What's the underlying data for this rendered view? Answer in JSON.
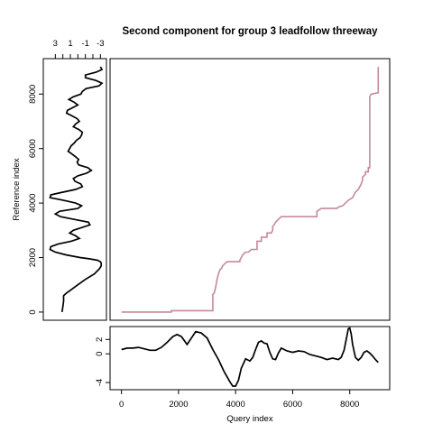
{
  "chart_data": {
    "type": "line",
    "title": "Second component for group 3 leadfollow threeway",
    "series_color": "#c48a98",
    "panels": [
      {
        "name": "alignment",
        "type": "line",
        "xlabel": "Query index",
        "ylabel": "Reference index",
        "xlim": [
          -400,
          9400
        ],
        "ylim": [
          -300,
          9300
        ],
        "x_ticks": [
          0,
          2000,
          4000,
          6000,
          8000
        ],
        "y_ticks": [
          0,
          2000,
          4000,
          6000,
          8000
        ],
        "x": [
          0,
          1750,
          1750,
          3200,
          3200,
          3250,
          3300,
          3350,
          3400,
          3450,
          3500,
          3550,
          3650,
          3700,
          3750,
          4150,
          4150,
          4200,
          4250,
          4300,
          4350,
          4450,
          4500,
          4550,
          4600,
          4750,
          4750,
          4900,
          4900,
          5100,
          5100,
          5250,
          5300,
          5300,
          5350,
          5400,
          5450,
          5500,
          5550,
          5600,
          6850,
          6850,
          7000,
          7350,
          7550,
          7600,
          7750,
          7850,
          7950,
          8100,
          8150,
          8200,
          8300,
          8400,
          8450,
          8450,
          8550,
          8550,
          8650,
          8650,
          8700,
          8700,
          8750,
          8750,
          9000,
          9000
        ],
        "y": [
          0,
          0,
          50,
          50,
          650,
          700,
          900,
          1200,
          1400,
          1550,
          1600,
          1700,
          1800,
          1850,
          1850,
          1850,
          1900,
          2000,
          2100,
          2150,
          2200,
          2200,
          2250,
          2300,
          2300,
          2300,
          2600,
          2600,
          2750,
          2750,
          2900,
          2900,
          3000,
          3150,
          3200,
          3300,
          3350,
          3400,
          3450,
          3500,
          3500,
          3700,
          3800,
          3800,
          3800,
          3850,
          3900,
          4000,
          4100,
          4200,
          4300,
          4400,
          4500,
          4700,
          4850,
          4950,
          5050,
          5150,
          5150,
          5300,
          5300,
          7900,
          8000,
          8000,
          8050,
          9000
        ]
      },
      {
        "name": "reference-component",
        "type": "line",
        "orientation": "vertical",
        "x_ticks": [
          3,
          1,
          -1,
          -3
        ],
        "xlim": [
          4.6,
          -3.8
        ],
        "ylim": [
          -300,
          9300
        ],
        "y": [
          0,
          200,
          400,
          600,
          700,
          800,
          1000,
          1200,
          1400,
          1600,
          1700,
          1800,
          1850,
          1900,
          1950,
          2000,
          2100,
          2200,
          2300,
          2400,
          2500,
          2600,
          2700,
          2800,
          2900,
          3000,
          3200,
          3300,
          3400,
          3500,
          3600,
          3700,
          3800,
          3900,
          4000,
          4100,
          4200,
          4300,
          4400,
          4500,
          4600,
          4700,
          4800,
          4900,
          5000,
          5100,
          5200,
          5300,
          5400,
          5500,
          5600,
          5700,
          5800,
          5900,
          6000,
          6100,
          6200,
          6300,
          6400,
          6500,
          6600,
          6700,
          6800,
          6900,
          7000,
          7100,
          7200,
          7300,
          7400,
          7500,
          7600,
          7700,
          7800,
          7900,
          8000,
          8100,
          8200,
          8300,
          8400,
          8500,
          8600,
          8700,
          8800,
          8900,
          9000
        ],
        "values": [
          2.1,
          2.0,
          1.9,
          1.9,
          1.5,
          1.0,
          0.0,
          -1.0,
          -2.2,
          -2.9,
          -3.1,
          -3.1,
          -3.0,
          -2.6,
          -1.6,
          -0.3,
          1.6,
          3.0,
          3.7,
          3.6,
          2.6,
          0.9,
          -0.2,
          0.3,
          1.1,
          0.6,
          -1.6,
          -1.4,
          0.5,
          2.3,
          3.0,
          2.4,
          0.0,
          -0.5,
          0.3,
          1.9,
          3.7,
          3.6,
          2.0,
          0.3,
          -0.6,
          -0.4,
          0.4,
          0.6,
          0.0,
          -1.2,
          -1.8,
          -1.3,
          -0.1,
          0.1,
          -0.1,
          0.3,
          0.8,
          1.3,
          1.1,
          0.9,
          0.5,
          0.2,
          -0.3,
          -0.5,
          -0.6,
          -0.1,
          0.6,
          0.3,
          -0.2,
          0.1,
          0.8,
          1.5,
          1.4,
          0.7,
          0.0,
          0.5,
          1.2,
          0.6,
          -0.4,
          -0.6,
          -1.1,
          -2.8,
          -3.2,
          -2.4,
          -1.0,
          -1.0,
          -2.4,
          -3.2,
          -3.0
        ]
      },
      {
        "name": "query-component",
        "type": "line",
        "xlim": [
          -400,
          9400
        ],
        "ylim": [
          -5.0,
          3.8
        ],
        "y_ticks": [
          2,
          0,
          -4
        ],
        "x": [
          0,
          200,
          400,
          600,
          800,
          1000,
          1200,
          1400,
          1600,
          1800,
          1950,
          2100,
          2300,
          2450,
          2600,
          2800,
          3000,
          3200,
          3400,
          3600,
          3800,
          3900,
          4000,
          4100,
          4200,
          4350,
          4500,
          4600,
          4700,
          4800,
          4900,
          5000,
          5100,
          5200,
          5300,
          5400,
          5500,
          5600,
          5800,
          6000,
          6200,
          6400,
          6600,
          6800,
          7000,
          7200,
          7400,
          7600,
          7700,
          7800,
          7900,
          7950,
          8000,
          8050,
          8100,
          8200,
          8300,
          8400,
          8500,
          8600,
          8700,
          8800,
          8900,
          9000
        ],
        "values": [
          0.6,
          0.8,
          0.8,
          0.9,
          0.7,
          0.5,
          0.5,
          0.9,
          1.6,
          2.4,
          2.7,
          2.4,
          1.3,
          2.2,
          3.1,
          2.9,
          2.2,
          0.6,
          -0.8,
          -2.5,
          -3.9,
          -4.5,
          -4.5,
          -3.7,
          -2.0,
          -0.7,
          -1.0,
          -0.5,
          0.6,
          1.6,
          1.8,
          1.5,
          1.4,
          0.2,
          -0.7,
          -0.8,
          0.1,
          0.8,
          0.4,
          0.2,
          0.4,
          0.3,
          -0.1,
          -0.3,
          -0.5,
          -0.8,
          -0.6,
          -0.8,
          -0.5,
          0.5,
          2.5,
          3.5,
          3.6,
          2.8,
          1.3,
          -0.5,
          -0.9,
          -0.5,
          0.2,
          0.4,
          0.1,
          -0.3,
          -0.8,
          -1.2
        ]
      }
    ]
  }
}
